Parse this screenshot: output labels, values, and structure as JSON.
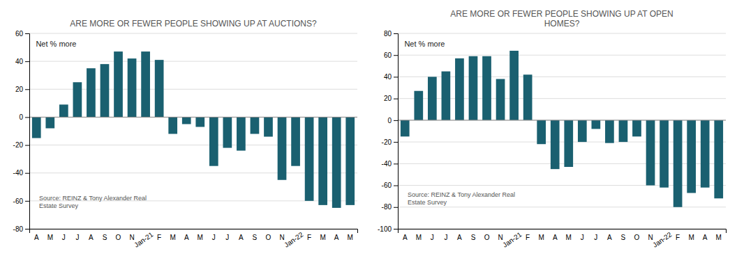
{
  "chart_data": [
    {
      "type": "bar",
      "title": "ARE MORE OR FEWER PEOPLE SHOWING UP AT AUCTIONS?",
      "categories": [
        "A",
        "M",
        "J",
        "J",
        "A",
        "S",
        "O",
        "N",
        "Jan-21",
        "F",
        "M",
        "A",
        "M",
        "J",
        "J",
        "A",
        "S",
        "O",
        "N",
        "Jan-22",
        "F",
        "M",
        "A",
        "M"
      ],
      "values": [
        -15,
        -8,
        9,
        25,
        35,
        38,
        47,
        42,
        47,
        41,
        -12,
        -5,
        -7,
        -35,
        -22,
        -24,
        -12,
        -14,
        -45,
        -35,
        -60,
        -63,
        -65,
        -63
      ],
      "color": "#1a6070",
      "ylim": [
        -80,
        60
      ],
      "yticks": [
        -80,
        -60,
        -40,
        -20,
        0,
        20,
        40,
        60
      ],
      "grid": true,
      "annotations": [
        "Net % more",
        "Source: REINZ & Tony Alexander Real\nEstate Survey"
      ]
    },
    {
      "type": "bar",
      "title": "ARE MORE OR FEWER PEOPLE SHOWING UP AT OPEN\nHOMES?",
      "categories": [
        "A",
        "M",
        "J",
        "J",
        "A",
        "S",
        "O",
        "N",
        "Jan-21",
        "F",
        "M",
        "A",
        "M",
        "J",
        "J",
        "A",
        "S",
        "O",
        "N",
        "Jan-22",
        "F",
        "M",
        "A",
        "M"
      ],
      "values": [
        -15,
        27,
        40,
        45,
        57,
        59,
        59,
        38,
        64,
        42,
        -22,
        -45,
        -43,
        -20,
        -8,
        -21,
        -20,
        -15,
        -60,
        -62,
        -80,
        -67,
        -62,
        -72
      ],
      "color": "#1a6070",
      "ylim": [
        -100,
        80
      ],
      "yticks": [
        -100,
        -80,
        -60,
        -40,
        -20,
        0,
        20,
        40,
        60,
        80
      ],
      "grid": true,
      "annotations": [
        "Net % more",
        "Source: REINZ & Tony Alexander Real\nEstate Survey"
      ]
    }
  ]
}
